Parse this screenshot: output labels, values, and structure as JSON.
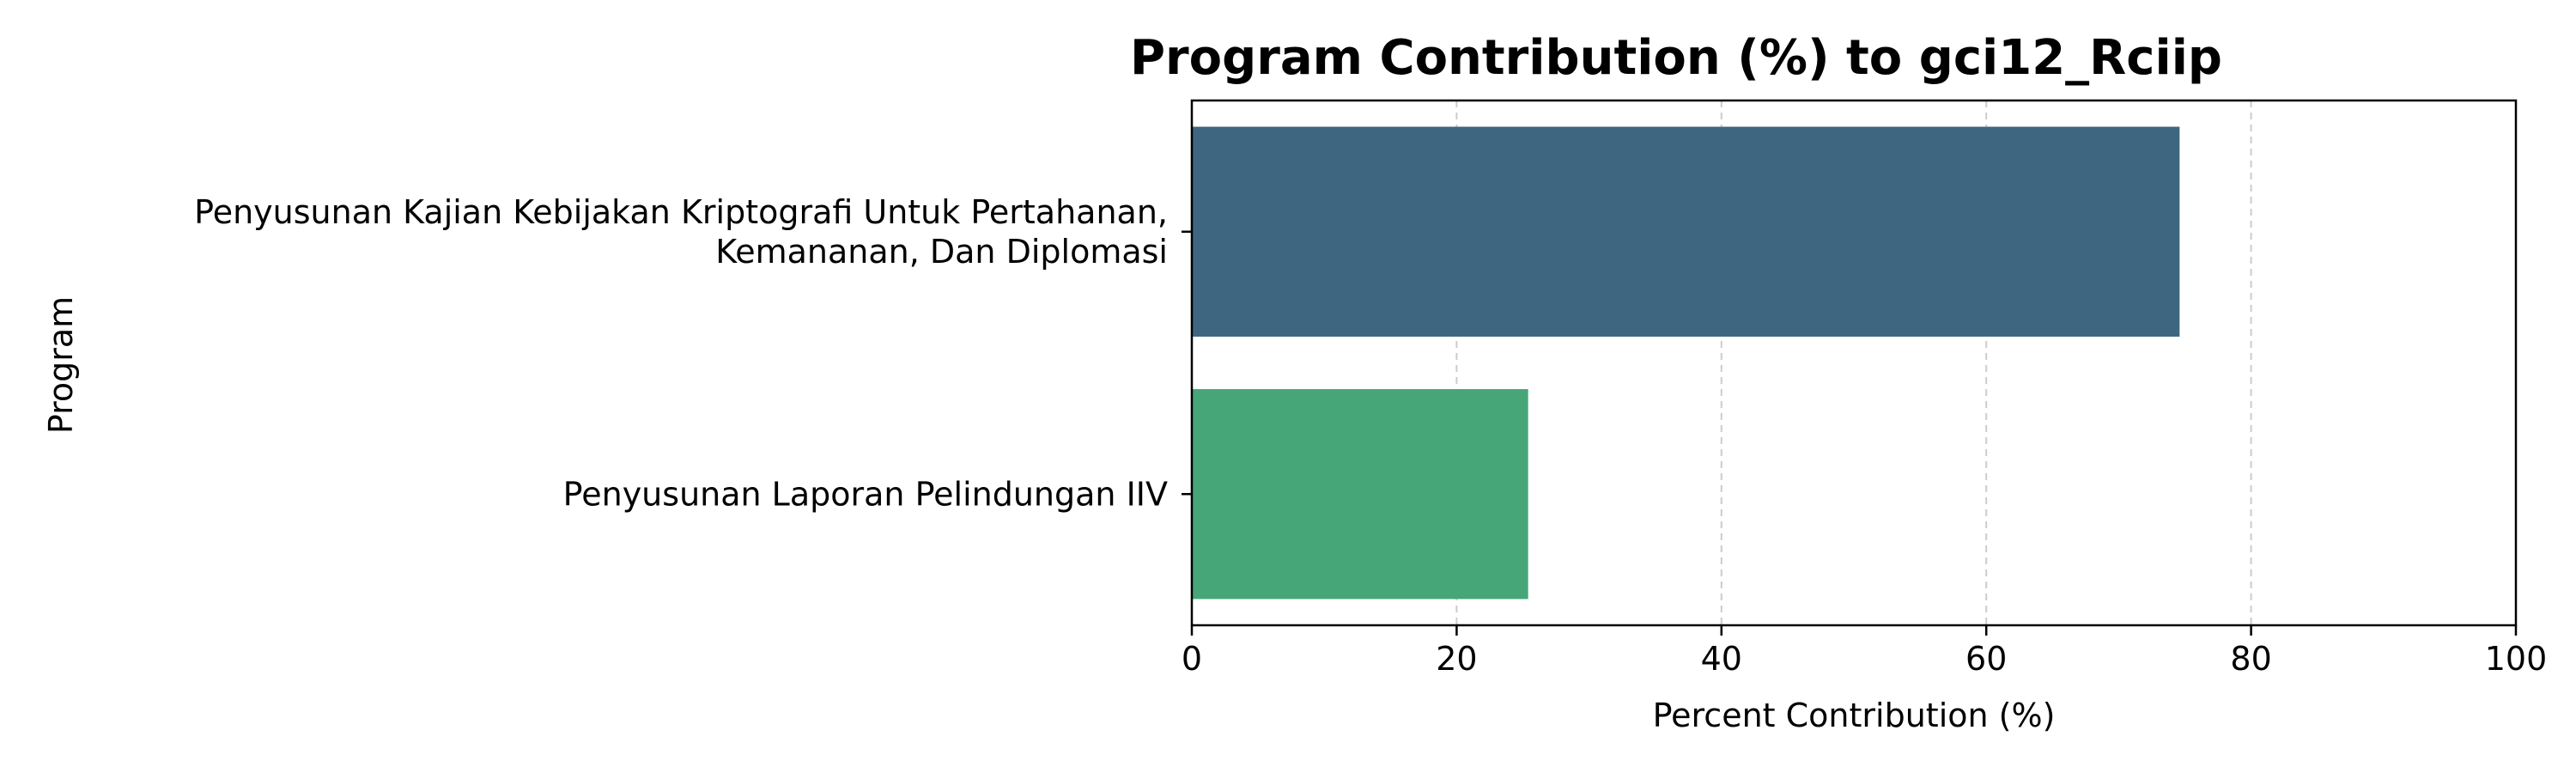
{
  "chart_data": {
    "type": "bar",
    "orientation": "horizontal",
    "title": "Program Contribution (%) to gci12_Rciip",
    "xlabel": "Percent Contribution (%)",
    "ylabel": "Program",
    "xlim": [
      0,
      100
    ],
    "xticks": [
      "0",
      "20",
      "40",
      "60",
      "80",
      "100"
    ],
    "grid": "x-dashed",
    "categories": [
      [
        "Penyusunan Kajian Kebijakan Kriptografi Untuk Pertahanan,",
        "Kemananan, Dan Diplomasi"
      ],
      [
        "Penyusunan Laporan Pelindungan IIV"
      ]
    ],
    "values": [
      74.6,
      25.4
    ],
    "colors": [
      "#3e6680",
      "#46a677"
    ]
  }
}
